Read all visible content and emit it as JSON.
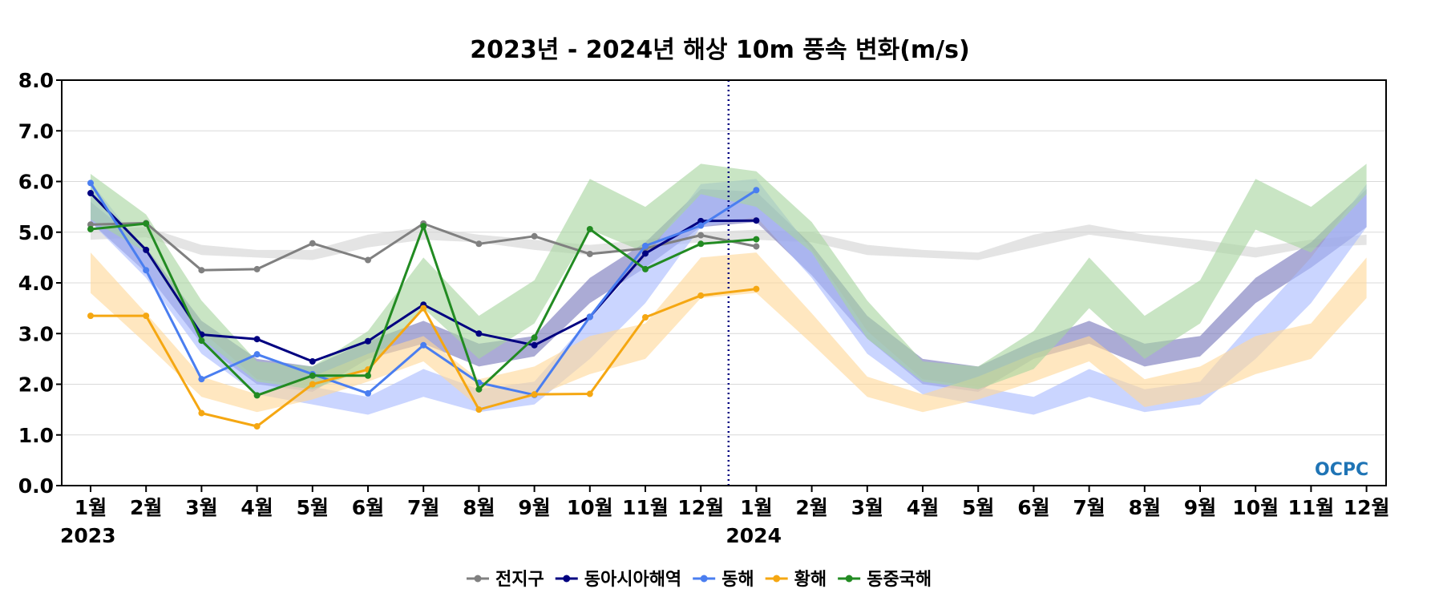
{
  "chart_data": {
    "type": "line",
    "title": "2023년 - 2024년 해상 10m 풍속 변화(m/s)",
    "xlabel": "",
    "ylabel": "",
    "ylim": [
      0,
      8
    ],
    "yticks": [
      "0.0",
      "1.0",
      "2.0",
      "3.0",
      "4.0",
      "5.0",
      "6.0",
      "7.0",
      "8.0"
    ],
    "month_labels": [
      "1월",
      "2월",
      "3월",
      "4월",
      "5월",
      "6월",
      "7월",
      "8월",
      "9월",
      "10월",
      "11월",
      "12월",
      "1월",
      "2월",
      "3월",
      "4월",
      "5월",
      "6월",
      "7월",
      "8월",
      "9월",
      "10월",
      "11월",
      "12월"
    ],
    "year_labels": [
      "2023",
      "2024"
    ],
    "divider_after_index": 11,
    "grid": true,
    "legend_position": "bottom-center",
    "logo": "OCPC",
    "series": [
      {
        "name": "전지구",
        "color": "#808080",
        "values": [
          5.15,
          5.18,
          4.25,
          4.27,
          4.78,
          4.45,
          5.17,
          4.77,
          4.92,
          4.57,
          4.68,
          4.94,
          4.72
        ],
        "band": {
          "color": "#d3d3d3",
          "lower": [
            4.85,
            4.9,
            4.55,
            4.5,
            4.45,
            4.7,
            4.85,
            4.8,
            4.65,
            4.55,
            4.7,
            4.8,
            4.85,
            4.8,
            4.55,
            4.5,
            4.45,
            4.7,
            4.95,
            4.8,
            4.65,
            4.5,
            4.7,
            4.75
          ],
          "upper": [
            5.05,
            5.1,
            4.75,
            4.65,
            4.65,
            4.95,
            5.1,
            4.95,
            4.85,
            4.75,
            4.85,
            5.0,
            5.05,
            5.0,
            4.75,
            4.65,
            4.6,
            4.95,
            5.15,
            4.95,
            4.85,
            4.7,
            4.85,
            4.95
          ]
        }
      },
      {
        "name": "동아시아해역",
        "color": "#000080",
        "values": [
          5.77,
          4.65,
          2.98,
          2.89,
          2.45,
          2.85,
          3.57,
          3.0,
          2.77,
          3.33,
          4.58,
          5.22,
          5.23
        ],
        "band": {
          "color": "#7777bb",
          "lower": [
            5.2,
            4.2,
            2.8,
            2.0,
            1.85,
            2.5,
            2.8,
            2.35,
            2.55,
            3.6,
            4.3,
            5.1,
            5.2,
            4.15,
            2.9,
            2.0,
            1.85,
            2.5,
            2.8,
            2.35,
            2.55,
            3.6,
            4.3,
            5.1
          ],
          "upper": [
            5.6,
            4.7,
            3.25,
            2.5,
            2.35,
            2.85,
            3.25,
            2.8,
            2.95,
            4.1,
            4.8,
            5.85,
            5.8,
            4.75,
            3.35,
            2.5,
            2.35,
            2.85,
            3.25,
            2.8,
            2.95,
            4.1,
            4.8,
            5.85
          ]
        }
      },
      {
        "name": "동해",
        "color": "#4a7ef0",
        "values": [
          5.97,
          4.25,
          2.1,
          2.59,
          2.2,
          1.82,
          2.77,
          2.03,
          1.79,
          3.33,
          4.73,
          5.13,
          5.83
        ],
        "band": {
          "color": "#aabcff",
          "lower": [
            5.2,
            4.1,
            2.6,
            1.8,
            1.6,
            1.4,
            1.75,
            1.45,
            1.6,
            2.5,
            3.6,
            5.1,
            5.3,
            4.1,
            2.6,
            1.8,
            1.6,
            1.4,
            1.75,
            1.45,
            1.6,
            2.5,
            3.6,
            5.1
          ],
          "upper": [
            6.0,
            4.6,
            3.05,
            2.1,
            1.95,
            1.75,
            2.3,
            1.9,
            2.05,
            3.3,
            4.5,
            5.95,
            6.05,
            4.65,
            3.05,
            2.1,
            1.95,
            1.75,
            2.3,
            1.9,
            2.05,
            3.3,
            4.5,
            5.95
          ]
        }
      },
      {
        "name": "황해",
        "color": "#f5a712",
        "values": [
          3.35,
          3.35,
          1.43,
          1.17,
          2.0,
          2.29,
          3.5,
          1.5,
          1.8,
          1.81,
          3.32,
          3.75,
          3.88
        ],
        "band": {
          "color": "#ffd89a",
          "lower": [
            3.8,
            2.8,
            1.75,
            1.45,
            1.7,
            2.05,
            2.45,
            1.55,
            1.75,
            2.2,
            2.5,
            3.7,
            3.8,
            2.8,
            1.75,
            1.45,
            1.7,
            2.05,
            2.45,
            1.55,
            1.75,
            2.2,
            2.5,
            3.7
          ],
          "upper": [
            4.6,
            3.4,
            2.15,
            1.8,
            2.15,
            2.6,
            2.95,
            2.1,
            2.35,
            2.95,
            3.2,
            4.5,
            4.6,
            3.4,
            2.15,
            1.8,
            2.15,
            2.6,
            2.95,
            2.1,
            2.35,
            2.95,
            3.2,
            4.5
          ]
        }
      },
      {
        "name": "동중국해",
        "color": "#228b22",
        "values": [
          5.06,
          5.17,
          2.86,
          1.78,
          2.17,
          2.17,
          5.12,
          1.9,
          2.92,
          5.06,
          4.27,
          4.77,
          4.86
        ],
        "band": {
          "color": "#a8d5a0",
          "lower": [
            5.25,
            4.6,
            2.9,
            2.05,
            1.9,
            2.3,
            3.5,
            2.5,
            3.2,
            5.05,
            4.6,
            5.75,
            5.5,
            4.6,
            2.9,
            2.05,
            1.9,
            2.3,
            3.5,
            2.5,
            3.2,
            5.05,
            4.6,
            5.75
          ],
          "upper": [
            6.15,
            5.35,
            3.65,
            2.45,
            2.35,
            3.05,
            4.5,
            3.35,
            4.05,
            6.05,
            5.5,
            6.35,
            6.2,
            5.2,
            3.65,
            2.45,
            2.35,
            3.05,
            4.5,
            3.35,
            4.05,
            6.05,
            5.5,
            6.35
          ]
        }
      }
    ]
  }
}
